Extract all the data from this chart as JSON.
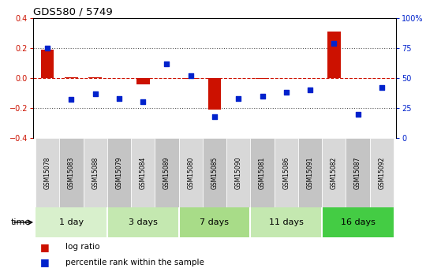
{
  "title": "GDS580 / 5749",
  "samples": [
    "GSM15078",
    "GSM15083",
    "GSM15088",
    "GSM15079",
    "GSM15084",
    "GSM15089",
    "GSM15080",
    "GSM15085",
    "GSM15090",
    "GSM15081",
    "GSM15086",
    "GSM15091",
    "GSM15082",
    "GSM15087",
    "GSM15092"
  ],
  "log_ratio": [
    0.19,
    0.005,
    0.005,
    0.0,
    -0.04,
    0.0,
    -0.005,
    -0.21,
    0.0,
    -0.005,
    0.0,
    0.0,
    0.31,
    0.0,
    0.0
  ],
  "percentile": [
    75,
    32,
    37,
    33,
    30,
    62,
    52,
    18,
    33,
    35,
    38,
    40,
    79,
    20,
    42
  ],
  "log_ratio_ylim": [
    -0.4,
    0.4
  ],
  "groups": [
    {
      "label": "1 day",
      "start": 0,
      "end": 3,
      "color": "#d8f0cc"
    },
    {
      "label": "3 days",
      "start": 3,
      "end": 6,
      "color": "#c4e8b0"
    },
    {
      "label": "7 days",
      "start": 6,
      "end": 9,
      "color": "#a8dc88"
    },
    {
      "label": "11 days",
      "start": 9,
      "end": 12,
      "color": "#c4e8b0"
    },
    {
      "label": "16 days",
      "start": 12,
      "end": 15,
      "color": "#44cc44"
    }
  ],
  "sample_colors_even": "#d8d8d8",
  "sample_colors_odd": "#c4c4c4",
  "bar_color": "#cc1100",
  "scatter_color": "#0022cc",
  "zero_line_color": "#cc1100",
  "dotted_line_color": "#555555",
  "right_axis_color": "#0022cc",
  "bar_width": 0.55,
  "legend_items": [
    {
      "label": "log ratio",
      "color": "#cc1100"
    },
    {
      "label": "percentile rank within the sample",
      "color": "#0022cc"
    }
  ]
}
